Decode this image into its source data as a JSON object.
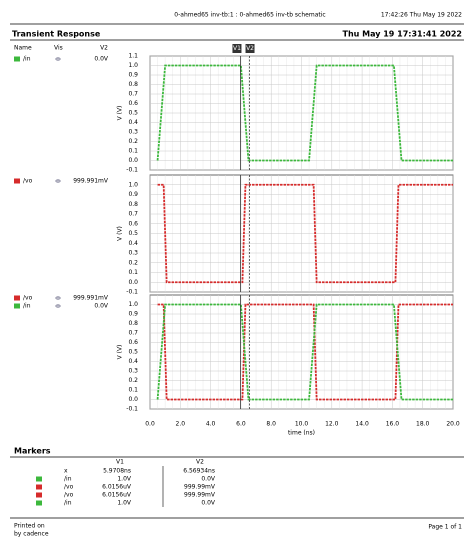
{
  "header": {
    "session": "0-ahmed65 inv-tb:1 : 0-ahmed65 inv-tb schematic",
    "printed": "17:42:26  Thu May 19 2022",
    "title": "Transient Response",
    "date": "Thu May 19 17:31:41 2022",
    "columns": [
      "Name",
      "Vis",
      "V2"
    ]
  },
  "cursors": [
    {
      "label": "V1",
      "x": 5.9708
    },
    {
      "label": "V2",
      "x": 6.56934
    }
  ],
  "chart_data": [
    {
      "type": "line",
      "ylabel": "V (V)",
      "xlim": [
        0,
        20
      ],
      "ylim": [
        -0.1,
        1.1
      ],
      "yticks": [
        -0.1,
        {
          "value": 0,
          "label": "0.0"
        },
        0.1,
        0.2,
        0.3,
        0.4,
        0.5,
        0.6,
        0.7,
        0.8,
        0.9,
        {
          "value": 1,
          "label": "1.0"
        },
        1.1
      ],
      "series": [
        {
          "name": "/in",
          "color": "#3cb83c",
          "cursor_value": "0.0V",
          "x": [
            0.5,
            1.0,
            6.0,
            6.5,
            10.5,
            11.0,
            16.1,
            16.6,
            20
          ],
          "values": [
            0,
            1,
            1,
            0,
            0,
            1,
            1,
            0,
            0
          ]
        }
      ]
    },
    {
      "type": "line",
      "ylabel": "V (V)",
      "xlim": [
        0,
        20
      ],
      "ylim": [
        -0.1,
        1.1
      ],
      "yticks": [
        -0.1,
        {
          "value": 0,
          "label": "0.0"
        },
        0.1,
        0.2,
        0.3,
        0.4,
        0.5,
        0.6,
        0.7,
        0.8,
        0.9,
        {
          "value": 1,
          "label": "1.0"
        }
      ],
      "series": [
        {
          "name": "/vo",
          "color": "#d62b2b",
          "cursor_value": "999.991mV",
          "x": [
            0.5,
            0.9,
            1.1,
            6.1,
            6.3,
            10.8,
            11.0,
            16.2,
            16.4,
            20
          ],
          "values": [
            1,
            1,
            0,
            0,
            1,
            1,
            0,
            0,
            1,
            1
          ]
        }
      ]
    },
    {
      "type": "line",
      "ylabel": "V (V)",
      "xlabel": "time (ns)",
      "xlim": [
        0,
        20
      ],
      "ylim": [
        -0.1,
        1.1
      ],
      "xticks": [
        {
          "value": 0,
          "label": "0.0"
        },
        {
          "value": 2,
          "label": "2.0"
        },
        {
          "value": 4,
          "label": "4.0"
        },
        {
          "value": 6,
          "label": "6.0"
        },
        {
          "value": 8,
          "label": "8.0"
        },
        {
          "value": 10,
          "label": "10.0"
        },
        {
          "value": 12,
          "label": "12.0"
        },
        {
          "value": 14,
          "label": "14.0"
        },
        {
          "value": 16,
          "label": "16.0"
        },
        {
          "value": 18,
          "label": "18.0"
        },
        {
          "value": 20,
          "label": "20.0"
        }
      ],
      "yticks": [
        -0.1,
        {
          "value": 0,
          "label": "0.0"
        },
        0.1,
        0.2,
        0.3,
        0.4,
        0.5,
        0.6,
        0.7,
        0.8,
        0.9,
        {
          "value": 1,
          "label": "1.0"
        }
      ],
      "series": [
        {
          "name": "/vo",
          "color": "#d62b2b",
          "cursor_value": "999.991mV",
          "x": [
            0.5,
            0.9,
            1.1,
            6.1,
            6.3,
            10.8,
            11.0,
            16.2,
            16.4,
            20
          ],
          "values": [
            1,
            1,
            0,
            0,
            1,
            1,
            0,
            0,
            1,
            1
          ]
        },
        {
          "name": "/in",
          "color": "#3cb83c",
          "cursor_value": "0.0V",
          "x": [
            0.5,
            1.0,
            6.0,
            6.5,
            10.5,
            11.0,
            16.1,
            16.6,
            20
          ],
          "values": [
            0,
            1,
            1,
            0,
            0,
            1,
            1,
            0,
            0
          ]
        }
      ]
    }
  ],
  "markers": {
    "title": "Markers",
    "columns": [
      "V1",
      "V2"
    ],
    "rows": [
      {
        "name": "x",
        "v1": "5.9708ns",
        "v2": "6.56934ns"
      },
      {
        "name": "/in",
        "color": "#3cb83c",
        "v1": "1.0V",
        "v2": "0.0V"
      },
      {
        "name": "/vo",
        "color": "#d62b2b",
        "v1": "6.0156uV",
        "v2": "999.99mV"
      },
      {
        "name": "/vo",
        "color": "#d62b2b",
        "v1": "6.0156uV",
        "v2": "999.99mV"
      },
      {
        "name": "/in",
        "color": "#3cb83c",
        "v1": "1.0V",
        "v2": "0.0V"
      }
    ]
  },
  "footer": {
    "printed_on": "Printed on",
    "by": "by cadence",
    "page": "Page 1 of 1"
  }
}
